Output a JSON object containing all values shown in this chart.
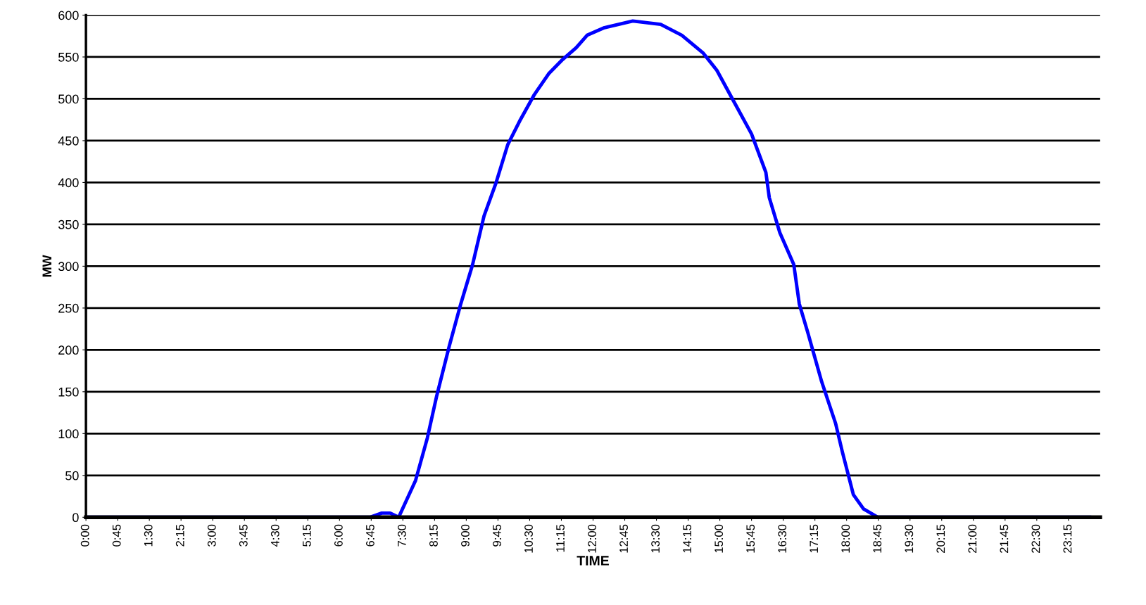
{
  "chart_data": {
    "type": "line",
    "xlabel": "TIME",
    "ylabel": "MW",
    "x": [
      0,
      6.72,
      7.0,
      7.2,
      7.4,
      7.8,
      8.08,
      8.3,
      8.6,
      8.87,
      9.15,
      9.42,
      9.7,
      9.98,
      10.28,
      10.61,
      10.95,
      11.28,
      11.6,
      11.86,
      12.27,
      12.94,
      13.6,
      14.1,
      14.6,
      14.93,
      15.34,
      15.75,
      16.09,
      16.17,
      16.42,
      16.75,
      16.88,
      17.08,
      17.41,
      17.74,
      17.9,
      18.16,
      18.4,
      18.74,
      23.75
    ],
    "series": [
      {
        "color": "#0000ff",
        "values": [
          0,
          0,
          5,
          5,
          0,
          44,
          95,
          145,
          205,
          255,
          302,
          360,
          399,
          445,
          475,
          505,
          530,
          547,
          561,
          576,
          585,
          593,
          589,
          576,
          555,
          534,
          496,
          458,
          412,
          382,
          340,
          302,
          255,
          221,
          162,
          112,
          78,
          27,
          10,
          0,
          0
        ]
      }
    ],
    "xlim": [
      0,
      24
    ],
    "xticks": [
      {
        "value": 0,
        "label": "0:00"
      },
      {
        "value": 0.75,
        "label": "0:45"
      },
      {
        "value": 1.5,
        "label": "1:30"
      },
      {
        "value": 2.25,
        "label": "2:15"
      },
      {
        "value": 3,
        "label": "3:00"
      },
      {
        "value": 3.75,
        "label": "3:45"
      },
      {
        "value": 4.5,
        "label": "4:30"
      },
      {
        "value": 5.25,
        "label": "5:15"
      },
      {
        "value": 6,
        "label": "6:00"
      },
      {
        "value": 6.75,
        "label": "6:45"
      },
      {
        "value": 7.5,
        "label": "7:30"
      },
      {
        "value": 8.25,
        "label": "8:15"
      },
      {
        "value": 9,
        "label": "9:00"
      },
      {
        "value": 9.75,
        "label": "9:45"
      },
      {
        "value": 10.5,
        "label": "10:30"
      },
      {
        "value": 11.25,
        "label": "11:15"
      },
      {
        "value": 12,
        "label": "12:00"
      },
      {
        "value": 12.75,
        "label": "12:45"
      },
      {
        "value": 13.5,
        "label": "13:30"
      },
      {
        "value": 14.25,
        "label": "14:15"
      },
      {
        "value": 15,
        "label": "15:00"
      },
      {
        "value": 15.75,
        "label": "15:45"
      },
      {
        "value": 16.5,
        "label": "16:30"
      },
      {
        "value": 17.25,
        "label": "17:15"
      },
      {
        "value": 18,
        "label": "18:00"
      },
      {
        "value": 18.75,
        "label": "18:45"
      },
      {
        "value": 19.5,
        "label": "19:30"
      },
      {
        "value": 20.25,
        "label": "20:15"
      },
      {
        "value": 21,
        "label": "21:00"
      },
      {
        "value": 21.75,
        "label": "21:45"
      },
      {
        "value": 22.5,
        "label": "22:30"
      },
      {
        "value": 23.25,
        "label": "23:15"
      }
    ],
    "ylim": [
      0,
      600
    ],
    "yticks": [
      0,
      50,
      100,
      150,
      200,
      250,
      300,
      350,
      400,
      450,
      500,
      550,
      600
    ],
    "grid": "y",
    "legend": false,
    "marker": "none",
    "line_style": "solid"
  }
}
